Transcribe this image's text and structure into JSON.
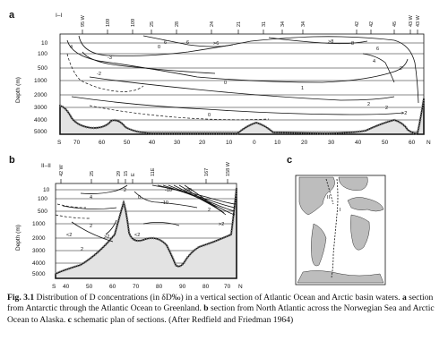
{
  "panel_a": {
    "letter": "a",
    "section_label": "I–I",
    "station_labels": [
      "95 W",
      "109",
      "109",
      "25",
      "28",
      "24",
      "21",
      "31",
      "34",
      "34",
      "42",
      "42",
      "45",
      "43 W",
      "43 W"
    ],
    "depth_ticks": [
      "10",
      "100",
      "500",
      "1000",
      "2000",
      "3000",
      "4000",
      "5000"
    ],
    "depth_axis_label": "Depth (m)",
    "lat_ticks": [
      "S",
      "70",
      "60",
      "50",
      "40",
      "30",
      "20",
      "10",
      "0",
      "10",
      "20",
      "30",
      "40",
      "50",
      "60",
      "N"
    ],
    "contour_labels": [
      "4",
      "-3",
      "-2",
      "0",
      "6",
      "6",
      ">6",
      ">8",
      "8",
      "6",
      "4",
      "2",
      "1",
      "0",
      "2",
      "2",
      ">2",
      "0"
    ]
  },
  "panel_b": {
    "letter": "b",
    "section_label": "II–II",
    "station_labels": [
      "42 W",
      "25",
      "29",
      "15",
      "E",
      "11E",
      "167",
      "158 W"
    ],
    "depth_ticks": [
      "10",
      "100",
      "500",
      "1000",
      "2000",
      "3000",
      "4000",
      "5000"
    ],
    "depth_axis_label": "Depth (m)",
    "lat_ticks": [
      "S",
      "40",
      "50",
      "60",
      "70",
      "80",
      "90",
      "80",
      "70",
      "N"
    ],
    "contour_labels": [
      "4",
      "2",
      "2",
      "0",
      "<2",
      ">2",
      "2",
      "<2",
      "-10",
      "-20",
      "-10",
      "2",
      ">2"
    ]
  },
  "panel_c": {
    "letter": "c",
    "section_labels": [
      "I",
      "II"
    ]
  },
  "caption": {
    "fig_label": "Fig. 3.1",
    "text1": " Distribution of D concentrations (in δD‰) in a vertical section of Atlantic Ocean and Arctic basin waters. ",
    "a_letter": "a",
    "text2": " section from Antarctic through the Atlantic Ocean to Greenland. ",
    "b_letter": "b",
    "text3": " section from North Atlantic across the Norwegian Sea and Arctic Ocean to Alaska. ",
    "c_letter": "c",
    "text4": " schematic plan of sections. (After Redfield and Friedman 1964)"
  }
}
